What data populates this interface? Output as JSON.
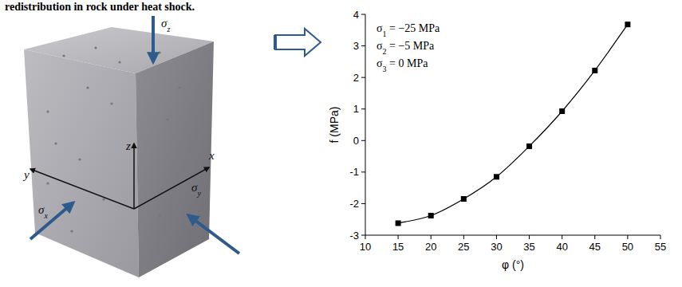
{
  "caption": "redistribution in rock under heat shock.",
  "photo": {
    "labels": [
      "σz",
      "σx",
      "σy",
      "x",
      "y",
      "z"
    ]
  },
  "chart_data": {
    "type": "line",
    "x_label": "φ (°)",
    "y_label": "f (MPa)",
    "annotations": [
      "σ1 = −25 MPa",
      "σ2 = −5 MPa",
      "σ3 = 0 MPa"
    ],
    "x": [
      15,
      20,
      25,
      30,
      35,
      40,
      45,
      50
    ],
    "series": [
      {
        "name": "f",
        "color": "#000000",
        "marker": "square",
        "line_style": "solid",
        "values": [
          -2.62,
          -2.38,
          -1.85,
          -1.15,
          -0.18,
          0.93,
          2.22,
          3.68
        ]
      }
    ],
    "xlim": [
      10,
      55
    ],
    "xticks": [
      10,
      15,
      20,
      25,
      30,
      35,
      40,
      45,
      50,
      55
    ],
    "ylim": [
      -3,
      4
    ],
    "yticks": [
      -3,
      -2,
      -1,
      0,
      1,
      2,
      3,
      4
    ],
    "grid": false
  }
}
